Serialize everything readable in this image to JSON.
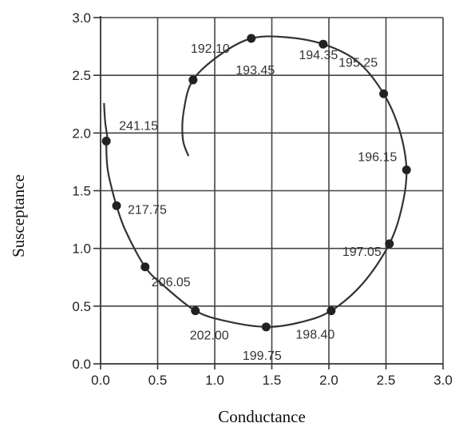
{
  "chart_data": {
    "type": "scatter",
    "xlabel": "Conductance",
    "ylabel": "Susceptance",
    "xlim": [
      0,
      3
    ],
    "ylim": [
      0,
      3
    ],
    "grid": true,
    "x_ticks": [
      "0.0",
      "0.5",
      "1.0",
      "1.5",
      "2.0",
      "2.5",
      "3.0"
    ],
    "y_ticks": [
      "0.0",
      "0.5",
      "1.0",
      "1.5",
      "2.0",
      "2.5",
      "3.0"
    ],
    "points": [
      {
        "label": "241.15",
        "x": 0.05,
        "y": 1.93
      },
      {
        "label": "217.75",
        "x": 0.14,
        "y": 1.37
      },
      {
        "label": "206.05",
        "x": 0.39,
        "y": 0.84
      },
      {
        "label": "202.00",
        "x": 0.83,
        "y": 0.46
      },
      {
        "label": "199.75",
        "x": 1.45,
        "y": 0.32
      },
      {
        "label": "198.40",
        "x": 2.02,
        "y": 0.46
      },
      {
        "label": "197.05",
        "x": 2.53,
        "y": 1.04
      },
      {
        "label": "196.15",
        "x": 2.68,
        "y": 1.68
      },
      {
        "label": "195.25",
        "x": 2.48,
        "y": 2.34
      },
      {
        "label": "194.35",
        "x": 1.95,
        "y": 2.77
      },
      {
        "label": "193.45",
        "x": 1.32,
        "y": 2.82
      },
      {
        "label": "192.10",
        "x": 0.81,
        "y": 2.46
      }
    ],
    "curve": [
      [
        0.03,
        2.26
      ],
      [
        0.04,
        2.1
      ],
      [
        0.06,
        1.95
      ],
      [
        0.05,
        1.9
      ],
      [
        0.06,
        1.7
      ],
      [
        0.09,
        1.55
      ],
      [
        0.14,
        1.37
      ],
      [
        0.22,
        1.15
      ],
      [
        0.39,
        0.84
      ],
      [
        0.55,
        0.68
      ],
      [
        0.83,
        0.46
      ],
      [
        1.1,
        0.37
      ],
      [
        1.45,
        0.32
      ],
      [
        1.75,
        0.36
      ],
      [
        2.02,
        0.46
      ],
      [
        2.3,
        0.7
      ],
      [
        2.53,
        1.04
      ],
      [
        2.64,
        1.36
      ],
      [
        2.68,
        1.68
      ],
      [
        2.62,
        2.02
      ],
      [
        2.48,
        2.34
      ],
      [
        2.25,
        2.62
      ],
      [
        1.95,
        2.77
      ],
      [
        1.62,
        2.83
      ],
      [
        1.32,
        2.82
      ],
      [
        1.05,
        2.68
      ],
      [
        0.81,
        2.46
      ],
      [
        0.73,
        2.2
      ],
      [
        0.72,
        1.95
      ],
      [
        0.77,
        1.8
      ]
    ]
  }
}
